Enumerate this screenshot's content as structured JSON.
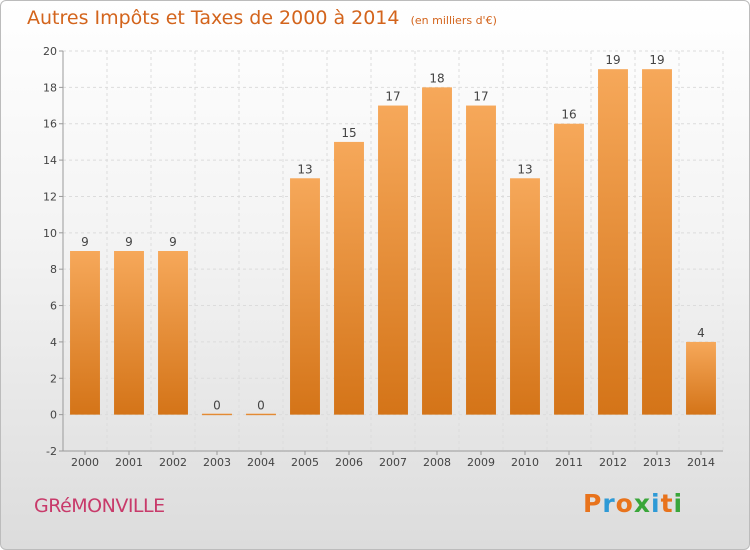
{
  "header": {
    "title": "Autres Impôts et Taxes de 2000 à 2014",
    "unit": "(en milliers d'€)"
  },
  "footer": {
    "commune": "GRéMONVILLE",
    "brand_letters": [
      "P",
      "r",
      "o",
      "x",
      "i",
      "t",
      "i"
    ],
    "brand_colors": [
      "#e8731c",
      "#2e9ad6",
      "#e8731c",
      "#3aa63a",
      "#2e9ad6",
      "#e8731c",
      "#3aa63a"
    ]
  },
  "colors": {
    "bar_top": "#f6a85a",
    "bar_bottom": "#d47418",
    "grid": "#dcdcdc",
    "axis": "#9a9a9a",
    "text": "#444444"
  },
  "chart_data": {
    "type": "bar",
    "categories": [
      "2000",
      "2001",
      "2002",
      "2003",
      "2004",
      "2005",
      "2006",
      "2007",
      "2008",
      "2009",
      "2010",
      "2011",
      "2012",
      "2013",
      "2014"
    ],
    "values": [
      9,
      9,
      9,
      0,
      0,
      13,
      15,
      17,
      18,
      17,
      13,
      16,
      19,
      19,
      4
    ],
    "value_labels": [
      "9",
      "9",
      "9",
      "0",
      "0",
      "13",
      "15",
      "17",
      "18",
      "17",
      "13",
      "16",
      "19",
      "19",
      "4"
    ],
    "yticks": [
      -2,
      0,
      2,
      4,
      6,
      8,
      10,
      12,
      14,
      16,
      18,
      20
    ],
    "ylim": [
      -2,
      20
    ],
    "grid": true
  }
}
